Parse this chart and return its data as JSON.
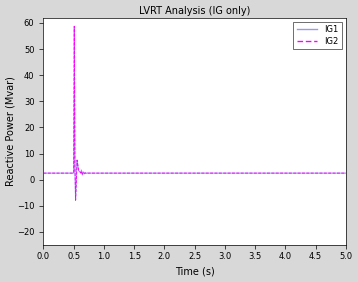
{
  "title": "LVRT Analysis (IG only)",
  "xlabel": "Time (s)",
  "ylabel": "Reactive Power (Mvar)",
  "xlim": [
    0,
    5
  ],
  "ylim": [
    -25,
    62
  ],
  "yticks": [
    -20,
    -10,
    0,
    10,
    20,
    30,
    40,
    50,
    60
  ],
  "xticks": [
    0,
    0.5,
    1,
    1.5,
    2,
    2.5,
    3,
    3.5,
    4,
    4.5,
    5
  ],
  "ig1_color": "#9999EE",
  "ig2_color": "#FF00FF",
  "fault_time": 0.5,
  "fault_end": 0.62,
  "ig1_steady": 2.5,
  "ig2_steady": 2.5,
  "ig1_peak": 59,
  "ig2_peak": 59,
  "ig1_trough": -8,
  "ig2_trough": -8,
  "legend_ig1": "IG1",
  "legend_ig2": "IG2",
  "bg_color": "#FFFFFF",
  "fig_bg": "#D8D8D8"
}
